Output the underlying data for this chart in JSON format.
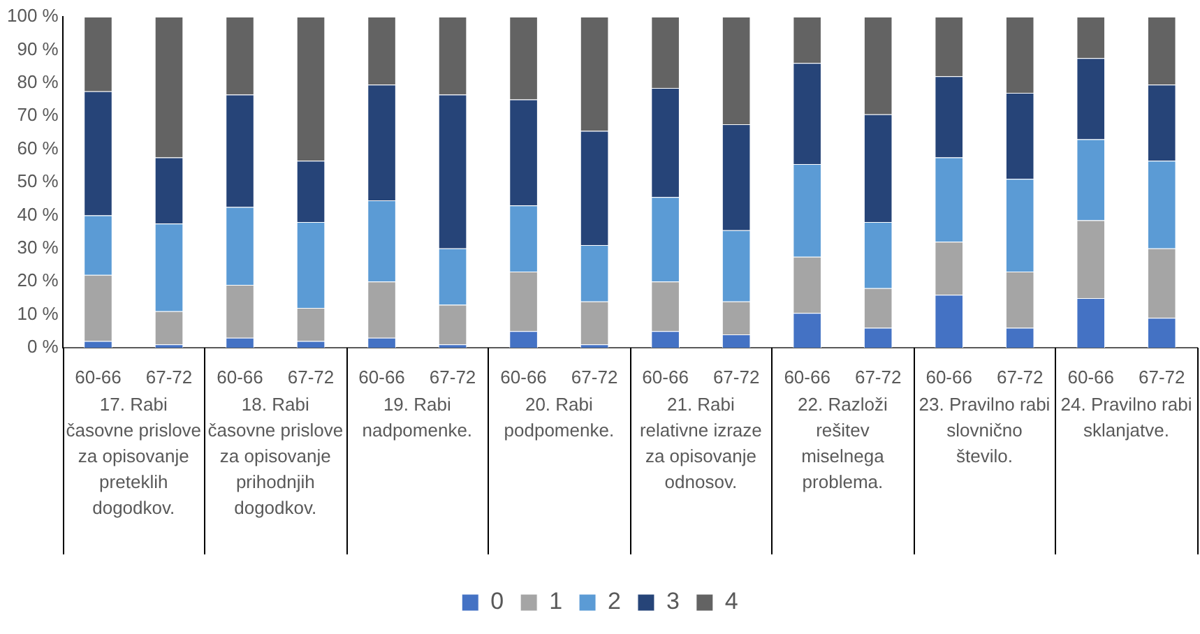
{
  "chart_data": {
    "type": "bar",
    "stacked": true,
    "categories": [
      "60-66",
      "67-72",
      "60-66",
      "67-72",
      "60-66",
      "67-72",
      "60-66",
      "67-72",
      "60-66",
      "67-72",
      "60-66",
      "67-72",
      "60-66",
      "67-72",
      "60-66",
      "67-72"
    ],
    "series": [
      {
        "name": "0",
        "color": "#4472c4",
        "values": [
          2,
          1,
          3,
          2,
          3,
          1,
          5,
          1,
          5,
          4,
          10.5,
          6,
          16,
          6,
          15,
          9
        ]
      },
      {
        "name": "1",
        "color": "#a5a5a5",
        "values": [
          20,
          10,
          16,
          10,
          17,
          12,
          18,
          13,
          15,
          10,
          17,
          12,
          16,
          17,
          23.5,
          21
        ]
      },
      {
        "name": "2",
        "color": "#5b9bd5",
        "values": [
          18,
          26.5,
          23.5,
          26,
          24.5,
          17,
          20,
          17,
          25.5,
          21.5,
          28,
          20,
          25.5,
          28,
          24.5,
          26.5
        ]
      },
      {
        "name": "3",
        "color": "#264478",
        "values": [
          37.5,
          20,
          34,
          18.5,
          35,
          46.5,
          32,
          34.5,
          33,
          32,
          30.5,
          32.5,
          24.5,
          26,
          24.5,
          23
        ]
      },
      {
        "name": "4",
        "color": "#636363",
        "values": [
          22.5,
          42.5,
          23.5,
          43.5,
          20.5,
          23.5,
          25,
          34.5,
          21.5,
          32.5,
          14,
          29.5,
          18,
          23,
          12.5,
          20.5
        ]
      }
    ],
    "ylim": [
      0,
      100
    ],
    "yticks": [
      {
        "value": 0,
        "label": "0 %"
      },
      {
        "value": 10,
        "label": "10 %"
      },
      {
        "value": 20,
        "label": "20 %"
      },
      {
        "value": 30,
        "label": "30 %"
      },
      {
        "value": 40,
        "label": "40 %"
      },
      {
        "value": 50,
        "label": "50 %"
      },
      {
        "value": 60,
        "label": "60 %"
      },
      {
        "value": 70,
        "label": "70 %"
      },
      {
        "value": 80,
        "label": "80 %"
      },
      {
        "value": 90,
        "label": "90 %"
      },
      {
        "value": 100,
        "label": "100 %"
      }
    ],
    "grid": false,
    "legend": "bottom",
    "annotations": [
      "17. Rabi časovne prislove za opisovanje preteklih dogodkov.",
      "18. Rabi časovne prislove za opisovanje prihodnjih dogodkov.",
      "19. Rabi nadpomenke.",
      "20. Rabi podpomenke.",
      "21. Rabi relativne izraze za opisovanje odnosov.",
      "22. Razloži rešitev miselnega problema.",
      "23. Pravilno rabi slovnično število.",
      "24. Pravilno rabi sklanjatve."
    ]
  }
}
